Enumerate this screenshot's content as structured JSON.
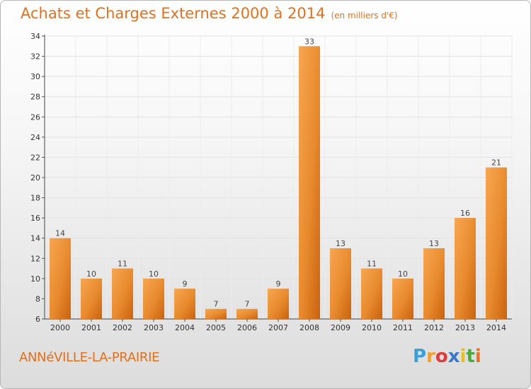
{
  "chart_data": {
    "type": "bar",
    "title": "Achats et Charges Externes 2000 à 2014",
    "subtitle": "(en milliers d'€)",
    "categories": [
      "2000",
      "2001",
      "2002",
      "2003",
      "2004",
      "2005",
      "2006",
      "2007",
      "2008",
      "2009",
      "2010",
      "2011",
      "2012",
      "2013",
      "2014"
    ],
    "values": [
      14,
      10,
      11,
      10,
      9,
      7,
      7,
      9,
      33,
      13,
      11,
      10,
      13,
      16,
      21
    ],
    "ylim": [
      6,
      34
    ],
    "yticks": [
      6,
      8,
      10,
      12,
      14,
      16,
      18,
      20,
      22,
      24,
      26,
      28,
      30,
      32,
      34
    ],
    "grid": true,
    "bar_colors": [
      "#f7a651",
      "#e07a1b",
      "#c9620f"
    ]
  },
  "place_name": "ANNéVILLE-LA-PRAIRIE",
  "logo": {
    "letters": [
      "P",
      "r",
      "o",
      "x",
      "i",
      "t",
      "i"
    ],
    "colors": [
      "#3aa0d8",
      "#f0a030",
      "#e03a3a",
      "#3a78c8",
      "#e8c020",
      "#4aaa3a",
      "#f07020"
    ]
  }
}
